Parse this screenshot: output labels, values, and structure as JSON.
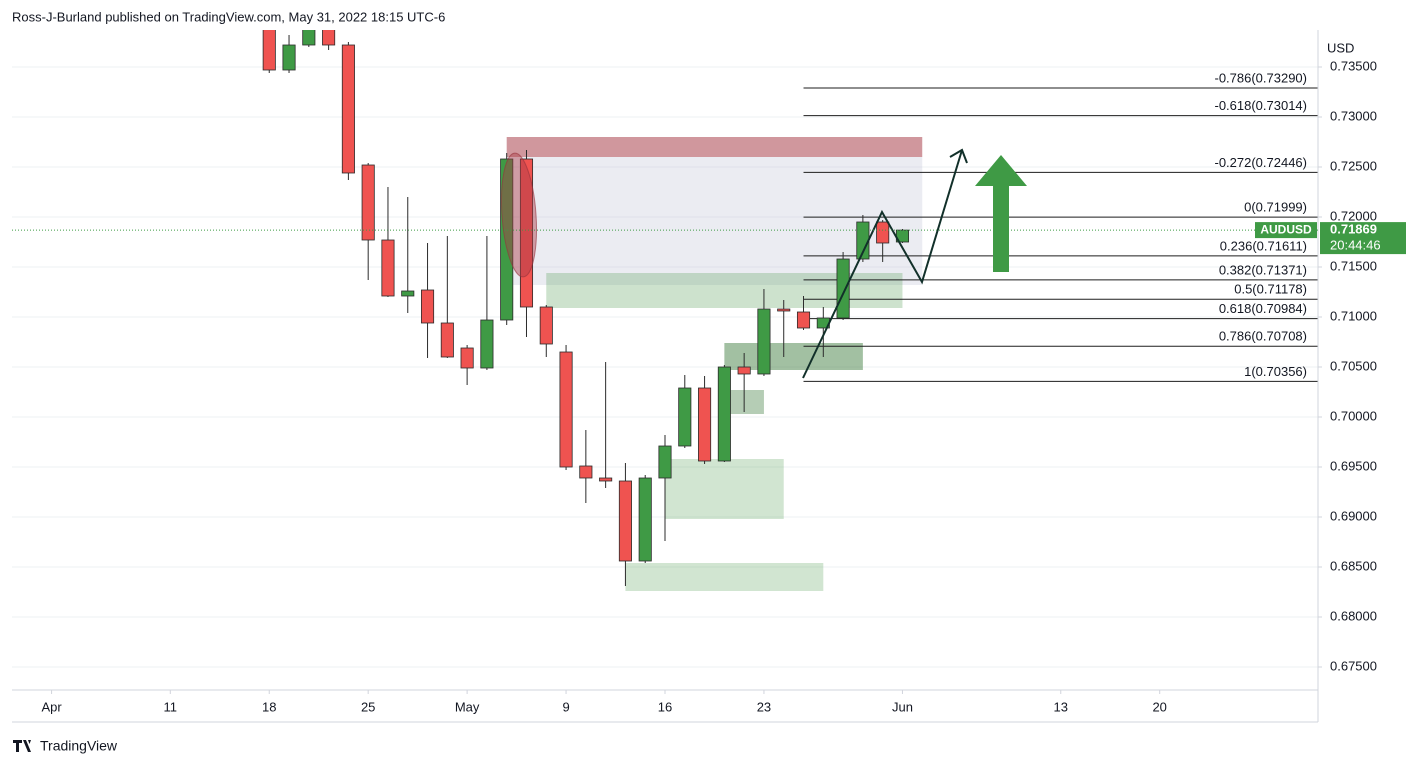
{
  "chart_data": {
    "type": "candlestick",
    "header": "Ross-J-Burland published on TradingView.com, May 31, 2022 18:15 UTC-6",
    "footer": "TradingView",
    "currency": "USD",
    "series": [
      {
        "name": "AUDUSD",
        "up_color": "#3f9a45",
        "down_color": "#ef5350",
        "x": [
          "2022-04-18",
          "2022-04-19",
          "2022-04-20",
          "2022-04-21",
          "2022-04-22",
          "2022-04-25",
          "2022-04-26",
          "2022-04-27",
          "2022-04-28",
          "2022-04-29",
          "2022-05-02",
          "2022-05-03",
          "2022-05-04",
          "2022-05-05",
          "2022-05-06",
          "2022-05-09",
          "2022-05-10",
          "2022-05-11",
          "2022-05-12",
          "2022-05-13",
          "2022-05-16",
          "2022-05-17",
          "2022-05-18",
          "2022-05-19",
          "2022-05-20",
          "2022-05-23",
          "2022-05-24",
          "2022-05-25",
          "2022-05-26",
          "2022-05-27",
          "2022-05-30",
          "2022-05-31",
          "2022-06-01"
        ],
        "open": [
          0.7395,
          0.7347,
          0.7372,
          0.7395,
          0.7372,
          0.7252,
          0.7177,
          0.7121,
          0.7127,
          0.7094,
          0.7069,
          0.7049,
          0.7097,
          0.7258,
          0.711,
          0.7065,
          0.6951,
          0.6939,
          0.6936,
          0.6856,
          0.6939,
          0.6971,
          0.7029,
          0.6956,
          0.705,
          0.7043,
          0.7108,
          0.7105,
          0.7089,
          0.7099,
          0.7158,
          0.7195,
          0.7175
        ],
        "high": [
          0.74,
          0.7382,
          0.74,
          0.741,
          0.7375,
          0.7254,
          0.723,
          0.722,
          0.7174,
          0.7181,
          0.7072,
          0.7181,
          0.7264,
          0.7267,
          0.7112,
          0.7072,
          0.6987,
          0.7055,
          0.6954,
          0.6942,
          0.6982,
          0.7042,
          0.7041,
          0.7052,
          0.7064,
          0.7128,
          0.7117,
          0.7121,
          0.711,
          0.7165,
          0.7202,
          0.7197,
          0.7188
        ],
        "low": [
          0.7344,
          0.7344,
          0.737,
          0.7367,
          0.7237,
          0.7137,
          0.712,
          0.7104,
          0.7059,
          0.7059,
          0.7032,
          0.7047,
          0.7092,
          0.708,
          0.706,
          0.6947,
          0.6914,
          0.6929,
          0.6831,
          0.6854,
          0.6876,
          0.6969,
          0.6953,
          0.6955,
          0.7005,
          0.7041,
          0.706,
          0.7087,
          0.706,
          0.7097,
          0.7155,
          0.7155,
          0.7174
        ],
        "close": [
          0.7347,
          0.7372,
          0.739,
          0.7372,
          0.7244,
          0.7177,
          0.7121,
          0.7126,
          0.7094,
          0.706,
          0.7049,
          0.7097,
          0.7258,
          0.711,
          0.7073,
          0.695,
          0.6939,
          0.6936,
          0.6856,
          0.6939,
          0.6971,
          0.7029,
          0.6956,
          0.705,
          0.7043,
          0.7108,
          0.7106,
          0.7089,
          0.7099,
          0.7158,
          0.7195,
          0.7174,
          0.71869
        ]
      }
    ],
    "last_price": 0.71869,
    "countdown": "20:44:46",
    "ylim": [
      0.6727,
      0.7387
    ],
    "yticks": [
      {
        "value": 0.675,
        "label": "0.67500"
      },
      {
        "value": 0.68,
        "label": "0.68000"
      },
      {
        "value": 0.685,
        "label": "0.68500"
      },
      {
        "value": 0.69,
        "label": "0.69000"
      },
      {
        "value": 0.695,
        "label": "0.69500"
      },
      {
        "value": 0.7,
        "label": "0.70000"
      },
      {
        "value": 0.705,
        "label": "0.70500"
      },
      {
        "value": 0.71,
        "label": "0.71000"
      },
      {
        "value": 0.715,
        "label": "0.71500"
      },
      {
        "value": 0.72,
        "label": "0.72000"
      },
      {
        "value": 0.725,
        "label": "0.72500"
      },
      {
        "value": 0.73,
        "label": "0.73000"
      },
      {
        "value": 0.735,
        "label": "0.73500"
      }
    ],
    "xlim": [
      "2022-03-30",
      "2022-06-30"
    ],
    "xticks": [
      {
        "value": "2022-04-01",
        "label": "Apr"
      },
      {
        "value": "2022-04-11",
        "label": "11"
      },
      {
        "value": "2022-04-18",
        "label": "18"
      },
      {
        "value": "2022-04-25",
        "label": "25"
      },
      {
        "value": "2022-05-02",
        "label": "May"
      },
      {
        "value": "2022-05-09",
        "label": "9"
      },
      {
        "value": "2022-05-16",
        "label": "16"
      },
      {
        "value": "2022-05-23",
        "label": "23"
      },
      {
        "value": "2022-06-01",
        "label": "Jun"
      },
      {
        "value": "2022-06-13",
        "label": "13"
      },
      {
        "value": "2022-06-20",
        "label": "20"
      }
    ],
    "grid": true,
    "fib": {
      "start": "2022-05-25",
      "levels": [
        {
          "value": 0.7329,
          "label": "-0.786(0.73290)"
        },
        {
          "value": 0.73014,
          "label": "-0.618(0.73014)"
        },
        {
          "value": 0.72446,
          "label": "-0.272(0.72446)"
        },
        {
          "value": 0.71999,
          "label": "0(0.71999)"
        },
        {
          "value": 0.71611,
          "label": "0.236(0.71611)"
        },
        {
          "value": 0.71371,
          "label": "0.382(0.71371)"
        },
        {
          "value": 0.71178,
          "label": "0.5(0.71178)"
        },
        {
          "value": 0.70984,
          "label": "0.618(0.70984)"
        },
        {
          "value": 0.70708,
          "label": "0.786(0.70708)"
        },
        {
          "value": 0.70356,
          "label": "1(0.70356)"
        }
      ]
    },
    "zones": [
      {
        "x0": "2022-05-04",
        "x1": "2022-06-02",
        "y0": 0.726,
        "y1": 0.728,
        "color": "rgba(176,82,92,0.6)"
      },
      {
        "x0": "2022-05-04",
        "x1": "2022-06-02",
        "y0": 0.7132,
        "y1": 0.726,
        "color": "rgba(190,192,212,0.3)"
      },
      {
        "x0": "2022-05-06",
        "x1": "2022-06-01",
        "y0": 0.7109,
        "y1": 0.7144,
        "color": "rgba(90,160,90,0.3)"
      },
      {
        "x0": "2022-05-19",
        "x1": "2022-05-30",
        "y0": 0.7047,
        "y1": 0.7074,
        "color": "rgba(70,130,70,0.5)"
      },
      {
        "x0": "2022-05-19",
        "x1": "2022-05-23",
        "y0": 0.7003,
        "y1": 0.7027,
        "color": "rgba(70,130,70,0.4)"
      },
      {
        "x0": "2022-05-16",
        "x1": "2022-05-24",
        "y0": 0.6898,
        "y1": 0.6958,
        "color": "rgba(90,160,90,0.28)"
      },
      {
        "x0": "2022-05-12",
        "x1": "2022-05-26",
        "y0": 0.6826,
        "y1": 0.6854,
        "color": "rgba(90,160,90,0.28)"
      }
    ]
  }
}
